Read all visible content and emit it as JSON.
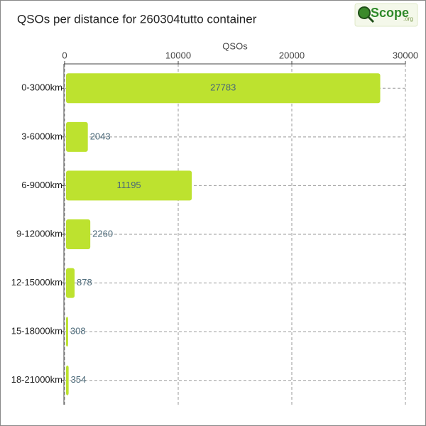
{
  "chart_data": {
    "type": "barh",
    "title": "QSOs per distance for 260304tutto container",
    "logo": {
      "name": "Scope",
      "suffix": ".org"
    },
    "x_label": "QSOs",
    "categories": [
      "0-3000km",
      "3-6000km",
      "6-9000km",
      "9-12000km",
      "12-15000km",
      "15-18000km",
      "18-21000km"
    ],
    "values": [
      27783,
      2043,
      11195,
      2260,
      878,
      308,
      354
    ],
    "color": "#bde22f",
    "xlim": [
      0,
      30000
    ],
    "xticks": [
      0,
      10000,
      20000,
      30000
    ],
    "grid": true
  }
}
